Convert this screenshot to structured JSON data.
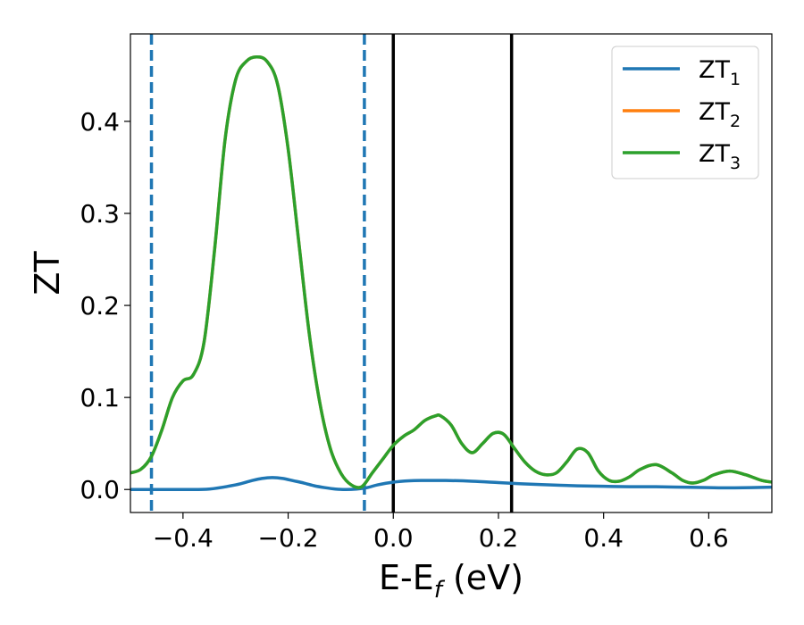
{
  "chart_data": {
    "type": "line",
    "xlabel": "E-E",
    "xlabel_sub": "f",
    "xlabel_unit": " (eV)",
    "ylabel": "ZT",
    "xlim": [
      -0.5,
      0.72
    ],
    "ylim": [
      -0.025,
      0.495
    ],
    "xticks": [
      -0.4,
      -0.2,
      0.0,
      0.2,
      0.4,
      0.6
    ],
    "xtick_labels": [
      "−0.4",
      "−0.2",
      "0.0",
      "0.2",
      "0.4",
      "0.6"
    ],
    "yticks": [
      0.0,
      0.1,
      0.2,
      0.3,
      0.4
    ],
    "ytick_labels": [
      "0.0",
      "0.1",
      "0.2",
      "0.3",
      "0.4"
    ],
    "grid": false,
    "legend_position": "top-right",
    "vlines": [
      {
        "x": -0.46,
        "style": "dashed",
        "color": "#1f77b4"
      },
      {
        "x": -0.055,
        "style": "dashed",
        "color": "#1f77b4"
      },
      {
        "x": 0.0,
        "style": "solid",
        "color": "#000000"
      },
      {
        "x": 0.225,
        "style": "solid",
        "color": "#000000"
      }
    ],
    "series": [
      {
        "name": "ZT",
        "sub": "1",
        "color": "#1f77b4",
        "x": [
          -0.5,
          -0.45,
          -0.4,
          -0.35,
          -0.3,
          -0.27,
          -0.25,
          -0.23,
          -0.21,
          -0.19,
          -0.17,
          -0.15,
          -0.13,
          -0.11,
          -0.09,
          -0.07,
          -0.05,
          -0.03,
          0.0,
          0.03,
          0.06,
          0.1,
          0.15,
          0.2,
          0.25,
          0.3,
          0.35,
          0.4,
          0.45,
          0.5,
          0.55,
          0.6,
          0.65,
          0.72
        ],
        "y": [
          0.0,
          0.0,
          0.0,
          0.0005,
          0.005,
          0.0095,
          0.012,
          0.013,
          0.012,
          0.0095,
          0.007,
          0.004,
          0.002,
          0.0005,
          0.0,
          0.0005,
          0.002,
          0.005,
          0.008,
          0.0095,
          0.0098,
          0.0098,
          0.009,
          0.0075,
          0.006,
          0.005,
          0.004,
          0.0035,
          0.003,
          0.003,
          0.0025,
          0.002,
          0.0018,
          0.0025
        ]
      },
      {
        "name": "ZT",
        "sub": "2",
        "color": "#ff7f0e",
        "x": [
          -0.5,
          -0.48,
          -0.46,
          -0.44,
          -0.42,
          -0.4,
          -0.38,
          -0.36,
          -0.34,
          -0.32,
          -0.3,
          -0.28,
          -0.26,
          -0.24,
          -0.22,
          -0.2,
          -0.18,
          -0.16,
          -0.14,
          -0.12,
          -0.1,
          -0.08,
          -0.06,
          -0.04,
          -0.02,
          0.0,
          0.02,
          0.04,
          0.06,
          0.08,
          0.09,
          0.11,
          0.13,
          0.15,
          0.17,
          0.19,
          0.21,
          0.23,
          0.25,
          0.27,
          0.29,
          0.31,
          0.33,
          0.35,
          0.37,
          0.39,
          0.41,
          0.43,
          0.45,
          0.47,
          0.5,
          0.53,
          0.55,
          0.57,
          0.59,
          0.61,
          0.64,
          0.67,
          0.7,
          0.72
        ],
        "y": [
          0.018,
          0.022,
          0.036,
          0.065,
          0.1,
          0.118,
          0.125,
          0.16,
          0.26,
          0.38,
          0.445,
          0.465,
          0.47,
          0.465,
          0.44,
          0.37,
          0.27,
          0.17,
          0.095,
          0.045,
          0.018,
          0.005,
          0.003,
          0.018,
          0.033,
          0.048,
          0.058,
          0.065,
          0.075,
          0.08,
          0.08,
          0.07,
          0.05,
          0.04,
          0.05,
          0.061,
          0.06,
          0.045,
          0.03,
          0.02,
          0.016,
          0.018,
          0.03,
          0.044,
          0.04,
          0.02,
          0.01,
          0.009,
          0.014,
          0.022,
          0.027,
          0.018,
          0.01,
          0.007,
          0.01,
          0.016,
          0.02,
          0.016,
          0.01,
          0.008
        ]
      },
      {
        "name": "ZT",
        "sub": "3",
        "color": "#2ca02c",
        "x": [
          -0.5,
          -0.48,
          -0.46,
          -0.44,
          -0.42,
          -0.4,
          -0.38,
          -0.36,
          -0.34,
          -0.32,
          -0.3,
          -0.28,
          -0.26,
          -0.24,
          -0.22,
          -0.2,
          -0.18,
          -0.16,
          -0.14,
          -0.12,
          -0.1,
          -0.08,
          -0.06,
          -0.04,
          -0.02,
          0.0,
          0.02,
          0.04,
          0.06,
          0.08,
          0.09,
          0.11,
          0.13,
          0.15,
          0.17,
          0.19,
          0.21,
          0.23,
          0.25,
          0.27,
          0.29,
          0.31,
          0.33,
          0.35,
          0.37,
          0.39,
          0.41,
          0.43,
          0.45,
          0.47,
          0.5,
          0.53,
          0.55,
          0.57,
          0.59,
          0.61,
          0.64,
          0.67,
          0.7,
          0.72
        ],
        "y": [
          0.018,
          0.022,
          0.036,
          0.065,
          0.1,
          0.118,
          0.125,
          0.16,
          0.26,
          0.38,
          0.445,
          0.465,
          0.47,
          0.465,
          0.44,
          0.37,
          0.27,
          0.17,
          0.095,
          0.045,
          0.018,
          0.005,
          0.003,
          0.018,
          0.033,
          0.048,
          0.058,
          0.065,
          0.075,
          0.08,
          0.08,
          0.07,
          0.05,
          0.04,
          0.05,
          0.061,
          0.06,
          0.045,
          0.03,
          0.02,
          0.016,
          0.018,
          0.03,
          0.044,
          0.04,
          0.02,
          0.01,
          0.009,
          0.014,
          0.022,
          0.027,
          0.018,
          0.01,
          0.007,
          0.01,
          0.016,
          0.02,
          0.016,
          0.01,
          0.008
        ]
      }
    ]
  }
}
